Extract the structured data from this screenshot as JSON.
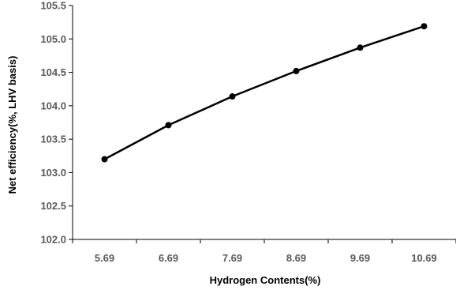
{
  "chart_data": {
    "type": "line",
    "title": "",
    "xlabel": "Hydrogen Contents(%)",
    "ylabel": "Net efficiency(%, LHV basis)",
    "categories": [
      "5.69",
      "6.69",
      "7.69",
      "8.69",
      "9.69",
      "10.69"
    ],
    "x": [
      5.69,
      6.69,
      7.69,
      8.69,
      9.69,
      10.69
    ],
    "series": [
      {
        "values": [
          103.2,
          103.71,
          104.14,
          104.52,
          104.87,
          105.19
        ]
      }
    ],
    "ylim": [
      102.0,
      105.5
    ],
    "yticks": [
      "102.0",
      "102.5",
      "103.0",
      "103.5",
      "104.0",
      "104.5",
      "105.0",
      "105.5"
    ],
    "grid": false,
    "legend": "none",
    "colors": {
      "line": "#000000",
      "marker": "#000000",
      "tick_text": "#595959",
      "axis": "#000000"
    }
  }
}
